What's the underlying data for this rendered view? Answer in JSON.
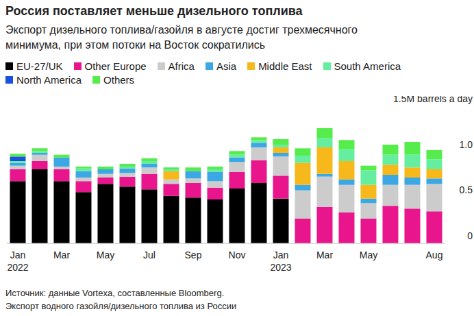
{
  "chart_data": {
    "type": "bar",
    "title": "Россия поставляет меньше дизельного топлива",
    "subtitle": "Экспорт дизельного топлива/газойля в августе достиг трехмесячного\nминимума, при этом потоки на Восток сократились",
    "source": "Источник: данные Vortexa, составленные Bloomberg.",
    "note": "Экспорт водного газойля/дизельного топлива из России",
    "stacked": true,
    "grid": false,
    "legend": "top",
    "categories": [
      "Jan\n2022",
      null,
      "Mar",
      null,
      "May",
      null,
      "Jul",
      null,
      "Sep",
      null,
      "Nov",
      null,
      "Jan\n2023",
      null,
      "Mar",
      null,
      "May",
      null,
      null,
      "Aug"
    ],
    "ylim": [
      0,
      1.5
    ],
    "yticks": [
      0,
      0.5,
      {
        "value": 1,
        "label": "1.0"
      },
      {
        "value": 1.5,
        "label": "1.5M barrels a day"
      }
    ],
    "series": [
      {
        "name": "EU-27/UK",
        "color": "#000000",
        "values": [
          0.68,
          0.81,
          0.68,
          0.56,
          0.65,
          0.62,
          0.59,
          0.52,
          0.5,
          0.48,
          0.6,
          0.66,
          0.49,
          0,
          0,
          0,
          0,
          0,
          0,
          0
        ]
      },
      {
        "name": "Other Europe",
        "color": "#e8158c",
        "values": [
          0.13,
          0.09,
          0.13,
          0.12,
          0.07,
          0.11,
          0.17,
          0.13,
          0.16,
          0.13,
          0.18,
          0.25,
          0.25,
          0.27,
          0.4,
          0.34,
          0.27,
          0.41,
          0.38,
          0.35
        ]
      },
      {
        "name": "Africa",
        "color": "#cccccc",
        "values": [
          0.04,
          0.07,
          0.03,
          0.04,
          0.04,
          0.04,
          0.07,
          0.05,
          0.05,
          0.07,
          0.11,
          0.14,
          0.21,
          0.31,
          0.33,
          0.3,
          0.17,
          0.23,
          0.26,
          0.3
        ]
      },
      {
        "name": "Asia",
        "color": "#3ba7e5",
        "values": [
          0.03,
          0.02,
          0.1,
          0.07,
          0.05,
          0.05,
          0.04,
          0,
          0.08,
          0.1,
          0.05,
          0.05,
          0.04,
          0.06,
          0.03,
          0.06,
          0.05,
          0.11,
          0.08,
          0.06
        ]
      },
      {
        "name": "Middle East",
        "color": "#f6b81a",
        "values": [
          0,
          0,
          0,
          0,
          0,
          0,
          0,
          0.09,
          0,
          0,
          0,
          0,
          0.06,
          0.24,
          0.29,
          0.2,
          0.15,
          0.11,
          0.11,
          0.1
        ]
      },
      {
        "name": "South America",
        "color": "#66eea0",
        "values": [
          0.02,
          0.02,
          0,
          0.03,
          0,
          0.02,
          0.03,
          0.02,
          0,
          0.03,
          0.03,
          0.03,
          0.03,
          0.08,
          0.1,
          0.13,
          0.16,
          0.11,
          0.14,
          0.11
        ]
      },
      {
        "name": "North America",
        "color": "#1b4fe0",
        "values": [
          0.05,
          0,
          0,
          0,
          0,
          0,
          0,
          0,
          0,
          0,
          0,
          0,
          0,
          0,
          0,
          0,
          0,
          0,
          0,
          0
        ]
      },
      {
        "name": "Others",
        "color": "#55ec4c",
        "values": [
          0.03,
          0.03,
          0.03,
          0.02,
          0.03,
          0.03,
          0.03,
          0.02,
          0.04,
          0.03,
          0.04,
          0.03,
          0.06,
          0.08,
          0.11,
          0.1,
          0.05,
          0.11,
          0.14,
          0.1
        ]
      }
    ]
  }
}
